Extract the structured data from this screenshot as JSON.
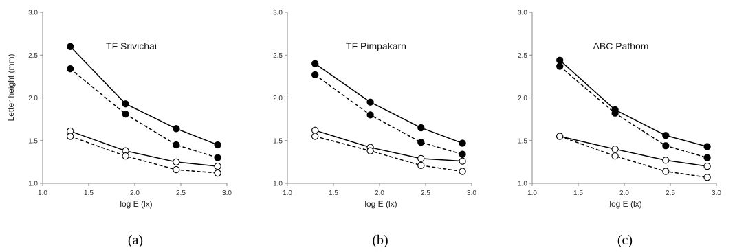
{
  "chart_data": [
    {
      "type": "line",
      "title": "TF Srivichai",
      "caption": "(a)",
      "xlabel": "log E (lx)",
      "ylabel": "Letter height (mm)",
      "xlim": [
        1.0,
        3.0
      ],
      "ylim": [
        1.0,
        3.0
      ],
      "xticks": [
        "1.0",
        "1.5",
        "2.0",
        "2.5",
        "3.0"
      ],
      "yticks": [
        "1.0",
        "1.5",
        "2.0",
        "2.5",
        "3.0"
      ],
      "grid": false,
      "series": [
        {
          "marker": "filled",
          "line": "solid",
          "x": [
            1.3,
            1.9,
            2.45,
            2.9
          ],
          "y": [
            2.6,
            1.93,
            1.64,
            1.45
          ]
        },
        {
          "marker": "filled",
          "line": "dashed",
          "x": [
            1.3,
            1.9,
            2.45,
            2.9
          ],
          "y": [
            2.34,
            1.81,
            1.45,
            1.3
          ]
        },
        {
          "marker": "open",
          "line": "solid",
          "x": [
            1.3,
            1.9,
            2.45,
            2.9
          ],
          "y": [
            1.61,
            1.38,
            1.25,
            1.2
          ]
        },
        {
          "marker": "open",
          "line": "dashed",
          "x": [
            1.3,
            1.9,
            2.45,
            2.9
          ],
          "y": [
            1.55,
            1.32,
            1.16,
            1.12
          ]
        }
      ]
    },
    {
      "type": "line",
      "title": "TF Pimpakarn",
      "caption": "(b)",
      "xlabel": "log E (lx)",
      "ylabel": "",
      "xlim": [
        1.0,
        3.0
      ],
      "ylim": [
        1.0,
        3.0
      ],
      "xticks": [
        "1.0",
        "1.5",
        "2.0",
        "2.5",
        "3.0"
      ],
      "yticks": [
        "1.0",
        "1.5",
        "2.0",
        "2.5",
        "3.0"
      ],
      "grid": false,
      "series": [
        {
          "marker": "filled",
          "line": "solid",
          "x": [
            1.3,
            1.9,
            2.45,
            2.9
          ],
          "y": [
            2.4,
            1.95,
            1.65,
            1.47
          ]
        },
        {
          "marker": "filled",
          "line": "dashed",
          "x": [
            1.3,
            1.9,
            2.45,
            2.9
          ],
          "y": [
            2.27,
            1.8,
            1.48,
            1.34
          ]
        },
        {
          "marker": "open",
          "line": "solid",
          "x": [
            1.3,
            1.9,
            2.45,
            2.9
          ],
          "y": [
            1.62,
            1.42,
            1.29,
            1.26
          ]
        },
        {
          "marker": "open",
          "line": "dashed",
          "x": [
            1.3,
            1.9,
            2.45,
            2.9
          ],
          "y": [
            1.55,
            1.38,
            1.21,
            1.14
          ]
        }
      ]
    },
    {
      "type": "line",
      "title": "ABC Pathom",
      "caption": "(c)",
      "xlabel": "log E (lx)",
      "ylabel": "",
      "xlim": [
        1.0,
        3.0
      ],
      "ylim": [
        1.0,
        3.0
      ],
      "xticks": [
        "1.0",
        "1.5",
        "2.0",
        "2.5",
        "3.0"
      ],
      "yticks": [
        "1.0",
        "1.5",
        "2.0",
        "2.5",
        "3.0"
      ],
      "grid": false,
      "series": [
        {
          "marker": "filled",
          "line": "solid",
          "x": [
            1.3,
            1.9,
            2.45,
            2.9
          ],
          "y": [
            2.44,
            1.86,
            1.56,
            1.43
          ]
        },
        {
          "marker": "filled",
          "line": "dashed",
          "x": [
            1.3,
            1.9,
            2.45,
            2.9
          ],
          "y": [
            2.37,
            1.82,
            1.44,
            1.3
          ]
        },
        {
          "marker": "open",
          "line": "solid",
          "x": [
            1.3,
            1.9,
            2.45,
            2.9
          ],
          "y": [
            1.55,
            1.4,
            1.27,
            1.2
          ]
        },
        {
          "marker": "open",
          "line": "dashed",
          "x": [
            1.3,
            1.9,
            2.45,
            2.9
          ],
          "y": [
            1.55,
            1.32,
            1.14,
            1.07
          ]
        }
      ]
    }
  ],
  "colors": {
    "line": "#000000",
    "axis": "#888888",
    "marker_filled": "#000000",
    "marker_open": "#ffffff"
  }
}
